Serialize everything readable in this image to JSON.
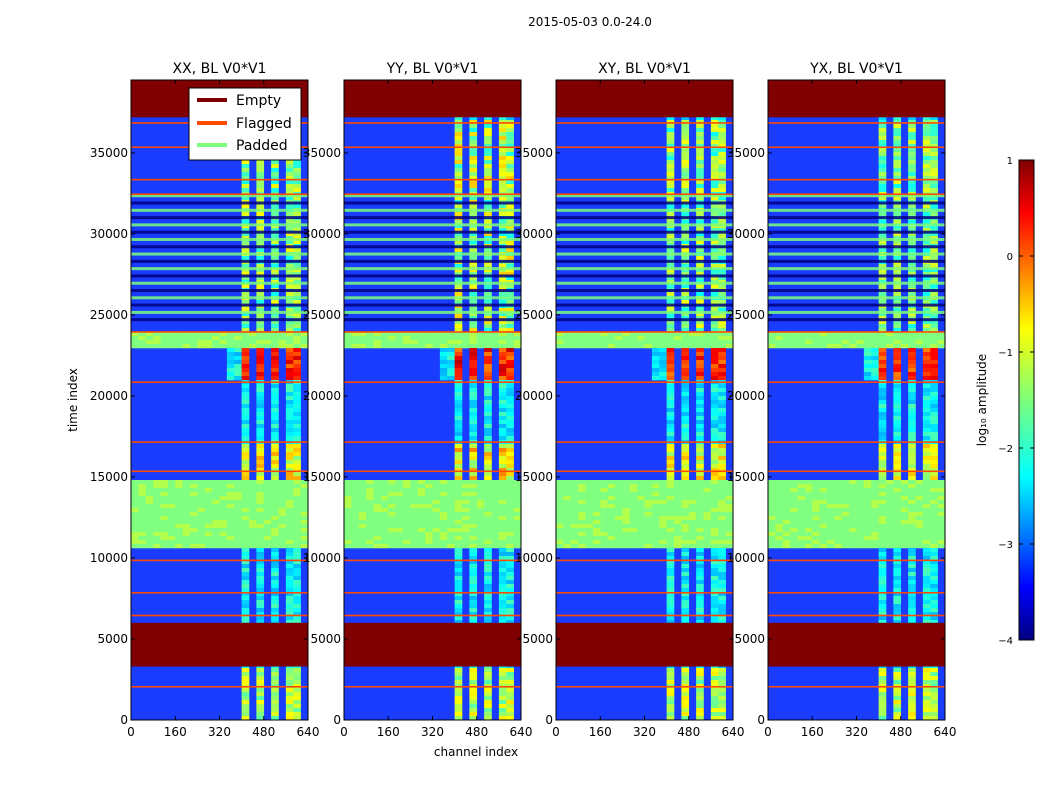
{
  "suptitle": "2015-05-03 0.0-24.0",
  "xlabel": "channel index",
  "ylabel": "time index",
  "legend": [
    {
      "label": "Empty",
      "color": "#7f0000"
    },
    {
      "label": "Flagged",
      "color": "#ff4a00"
    },
    {
      "label": "Padded",
      "color": "#7dff7a"
    }
  ],
  "colorbar": {
    "label": "log₁₀ amplitude",
    "ticks": [
      "1",
      "0",
      "−1",
      "−2",
      "−3",
      "−4"
    ],
    "range": [
      -4,
      1
    ]
  },
  "chart_data": {
    "type": "heatmap",
    "panels": [
      {
        "title": "XX, BL V0*V1",
        "band_strength": 0.85
      },
      {
        "title": "YY, BL V0*V1",
        "band_strength": 1.0
      },
      {
        "title": "XY, BL V0*V1",
        "band_strength": 0.8
      },
      {
        "title": "YX, BL V0*V1",
        "band_strength": 0.75
      }
    ],
    "x_range": [
      0,
      640
    ],
    "x_ticks": [
      0,
      160,
      320,
      480,
      640
    ],
    "y_range": [
      0,
      39500
    ],
    "y_ticks": [
      0,
      5000,
      10000,
      15000,
      20000,
      25000,
      30000,
      35000
    ],
    "empty_time_ranges": [
      [
        3300,
        6000
      ],
      [
        37200,
        39500
      ]
    ],
    "padded_time_ranges": [
      [
        10600,
        14800
      ],
      [
        23000,
        23900
      ]
    ],
    "high_amplitude_time_range": [
      21000,
      23000
    ],
    "signal_channel_range": [
      400,
      600
    ]
  }
}
